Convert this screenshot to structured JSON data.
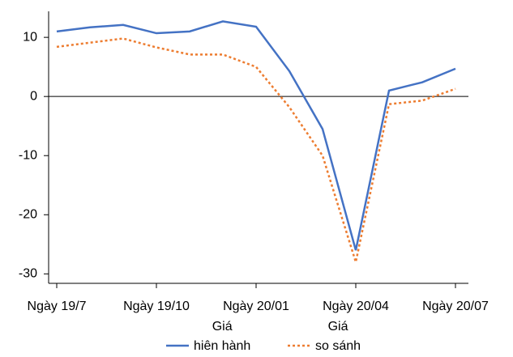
{
  "chart_data": {
    "type": "line",
    "categories": [
      "Ngày 19/7",
      null,
      null,
      "Ngày 19/10",
      null,
      null,
      "Ngày 20/01",
      null,
      null,
      "Ngày 20/04",
      null,
      null,
      "Ngày 20/07"
    ],
    "series": [
      {
        "name": "Giá\nhiên hành",
        "color": "#4472c4",
        "dash": "solid",
        "values": [
          11,
          11.7,
          12.1,
          10.7,
          11,
          12.7,
          11.8,
          4.3,
          -5.5,
          -26,
          1,
          2.4,
          4.7
        ]
      },
      {
        "name": "Giá\nso sánh",
        "color": "#ed7d31",
        "dash": "dotted",
        "values": [
          8.4,
          9.1,
          9.8,
          8.3,
          7.1,
          7.1,
          5,
          -1.8,
          -10,
          -28,
          -1.3,
          -0.7,
          1.3
        ]
      }
    ],
    "ylim": [
      -31.6,
      14.4
    ],
    "yticks": [
      -30,
      -20,
      -10,
      0,
      10
    ],
    "zero_line": true,
    "legend": "bottom"
  }
}
